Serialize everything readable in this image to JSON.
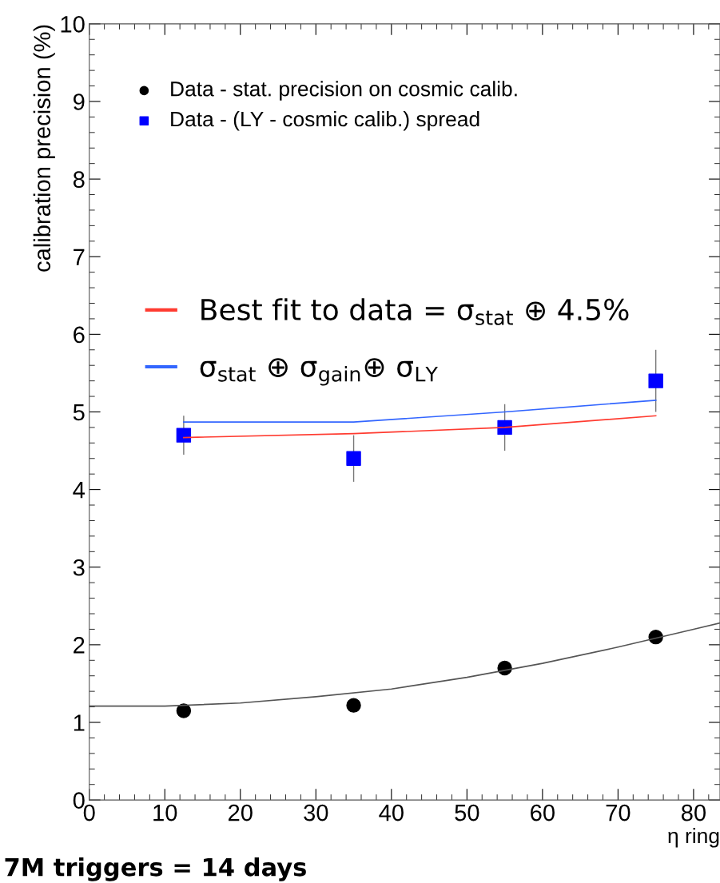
{
  "chart_data": {
    "type": "scatter",
    "xlabel": "η ring",
    "ylabel": "calibration precision (%)",
    "xlim": [
      0,
      83.5
    ],
    "xticks": [
      0,
      10,
      20,
      30,
      40,
      50,
      60,
      70,
      80
    ],
    "ylim": [
      0,
      10
    ],
    "yticks": [
      0,
      1,
      2,
      3,
      4,
      5,
      6,
      7,
      8,
      9,
      10
    ],
    "grid": false,
    "legend": "top left",
    "annotations": [
      "7M triggers = 14 days"
    ],
    "series": [
      {
        "name": "Data - stat. precision on cosmic calib.",
        "marker": "circle",
        "color": "#000000",
        "x": [
          12.5,
          35,
          55,
          75
        ],
        "values": [
          1.15,
          1.22,
          1.7,
          2.1
        ]
      },
      {
        "name": "Data - (LY - cosmic calib.) spread",
        "marker": "square",
        "color": "#0000ff",
        "x": [
          12.5,
          35,
          55,
          75
        ],
        "values": [
          4.7,
          4.4,
          4.8,
          5.4
        ],
        "errors": [
          0.25,
          0.3,
          0.3,
          0.4
        ]
      },
      {
        "name": "Best fit to data = σ$_{stat}$ ⊕ 4.5%",
        "type": "line",
        "color": "#ff3b30",
        "x": [
          12.5,
          35,
          55,
          75
        ],
        "values": [
          4.67,
          4.72,
          4.8,
          4.95
        ]
      },
      {
        "name": "σ$_{stat}$ ⊕ σ$_{gain}$⊕ σ$_{LY}$",
        "type": "line",
        "color": "#3366ff",
        "x": [
          12.5,
          35,
          55,
          75
        ],
        "values": [
          4.87,
          4.87,
          5.0,
          5.15
        ]
      },
      {
        "type": "line",
        "color": "#555555",
        "x": [
          0,
          10,
          20,
          30,
          40,
          50,
          60,
          70,
          80,
          83.5
        ],
        "values": [
          1.21,
          1.21,
          1.25,
          1.33,
          1.43,
          1.58,
          1.76,
          1.97,
          2.2,
          2.28
        ]
      }
    ]
  }
}
